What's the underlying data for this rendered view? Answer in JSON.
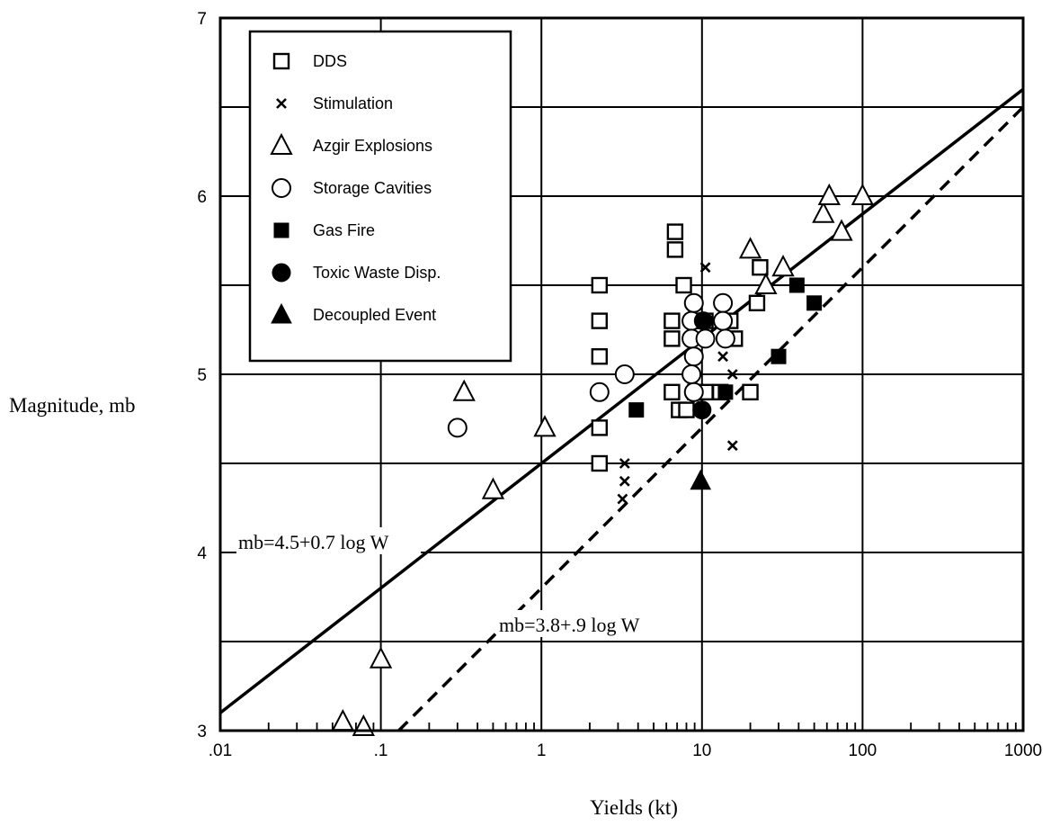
{
  "chart_data": {
    "type": "scatter",
    "title": "",
    "xlabel": "Yields (kt)",
    "ylabel": "Magnitude, mb",
    "xscale": "log",
    "xlim": [
      0.01,
      1000
    ],
    "ylim": [
      3,
      7
    ],
    "grid": true,
    "legend_position": "top-left",
    "x_ticks": [
      {
        "value": 0.01,
        "label": ".01"
      },
      {
        "value": 0.1,
        "label": ".1"
      },
      {
        "value": 1,
        "label": "1"
      },
      {
        "value": 10,
        "label": "10"
      },
      {
        "value": 100,
        "label": "100"
      },
      {
        "value": 1000,
        "label": "1000"
      }
    ],
    "y_ticks": [
      {
        "value": 3,
        "label": "3"
      },
      {
        "value": 4,
        "label": "4"
      },
      {
        "value": 5,
        "label": "5"
      },
      {
        "value": 6,
        "label": "6"
      },
      {
        "value": 7,
        "label": "7"
      }
    ],
    "series": [
      {
        "name": "DDS",
        "marker": "square-open",
        "points": [
          [
            2.3,
            5.5
          ],
          [
            2.3,
            5.3
          ],
          [
            2.3,
            5.1
          ],
          [
            2.3,
            4.7
          ],
          [
            2.3,
            4.5
          ],
          [
            6.8,
            5.8
          ],
          [
            6.8,
            5.7
          ],
          [
            6.5,
            5.3
          ],
          [
            6.5,
            5.2
          ],
          [
            6.5,
            4.9
          ],
          [
            7.7,
            5.5
          ],
          [
            7.2,
            4.8
          ],
          [
            8.0,
            4.8
          ],
          [
            9.1,
            5.3
          ],
          [
            10.5,
            5.3
          ],
          [
            9.1,
            4.9
          ],
          [
            10.5,
            4.9
          ],
          [
            13.0,
            4.9
          ],
          [
            15.0,
            5.3
          ],
          [
            16.0,
            5.2
          ],
          [
            20.0,
            4.9
          ],
          [
            22.0,
            5.4
          ],
          [
            23.0,
            5.6
          ]
        ]
      },
      {
        "name": "Stimulation",
        "marker": "x",
        "points": [
          [
            3.3,
            4.5
          ],
          [
            3.3,
            4.4
          ],
          [
            3.2,
            4.3
          ],
          [
            10.5,
            5.6
          ],
          [
            13.5,
            5.1
          ],
          [
            15.5,
            5.0
          ],
          [
            15.5,
            4.6
          ]
        ]
      },
      {
        "name": "Azgir Explosions",
        "marker": "triangle-open",
        "points": [
          [
            0.058,
            3.05
          ],
          [
            0.078,
            3.02
          ],
          [
            0.1,
            3.4
          ],
          [
            0.33,
            4.9
          ],
          [
            0.5,
            4.35
          ],
          [
            1.05,
            4.7
          ],
          [
            20.0,
            5.7
          ],
          [
            25.0,
            5.5
          ],
          [
            32.0,
            5.6
          ],
          [
            57.0,
            5.9
          ],
          [
            62.0,
            6.0
          ],
          [
            74.0,
            5.8
          ],
          [
            100.0,
            6.0
          ]
        ]
      },
      {
        "name": "Storage Cavities",
        "marker": "circle-open",
        "points": [
          [
            0.3,
            4.7
          ],
          [
            2.3,
            4.9
          ],
          [
            3.3,
            5.0
          ],
          [
            8.9,
            5.4
          ],
          [
            8.6,
            5.3
          ],
          [
            8.6,
            5.2
          ],
          [
            8.9,
            5.1
          ],
          [
            8.6,
            5.0
          ],
          [
            8.9,
            4.9
          ],
          [
            10.5,
            5.2
          ],
          [
            13.5,
            5.4
          ],
          [
            13.5,
            5.3
          ],
          [
            14.0,
            5.2
          ]
        ]
      },
      {
        "name": "Gas Fire",
        "marker": "square-filled",
        "points": [
          [
            3.9,
            4.8
          ],
          [
            14.0,
            4.9
          ],
          [
            30.0,
            5.1
          ],
          [
            39.0,
            5.5
          ],
          [
            50.0,
            5.4
          ]
        ]
      },
      {
        "name": "Toxic Waste Disp.",
        "marker": "circle-filled",
        "points": [
          [
            10.2,
            5.3
          ],
          [
            10.0,
            4.8
          ]
        ]
      },
      {
        "name": "Decoupled Event",
        "marker": "triangle-filled",
        "points": [
          [
            9.8,
            4.4
          ]
        ]
      }
    ],
    "lines": [
      {
        "label": "mb=4.5+0.7 log W",
        "style": "solid",
        "intercept": 4.5,
        "slope": 0.7
      },
      {
        "label": "mb=3.8+.9 log W",
        "style": "dashed",
        "intercept": 3.8,
        "slope": 0.9
      }
    ]
  }
}
